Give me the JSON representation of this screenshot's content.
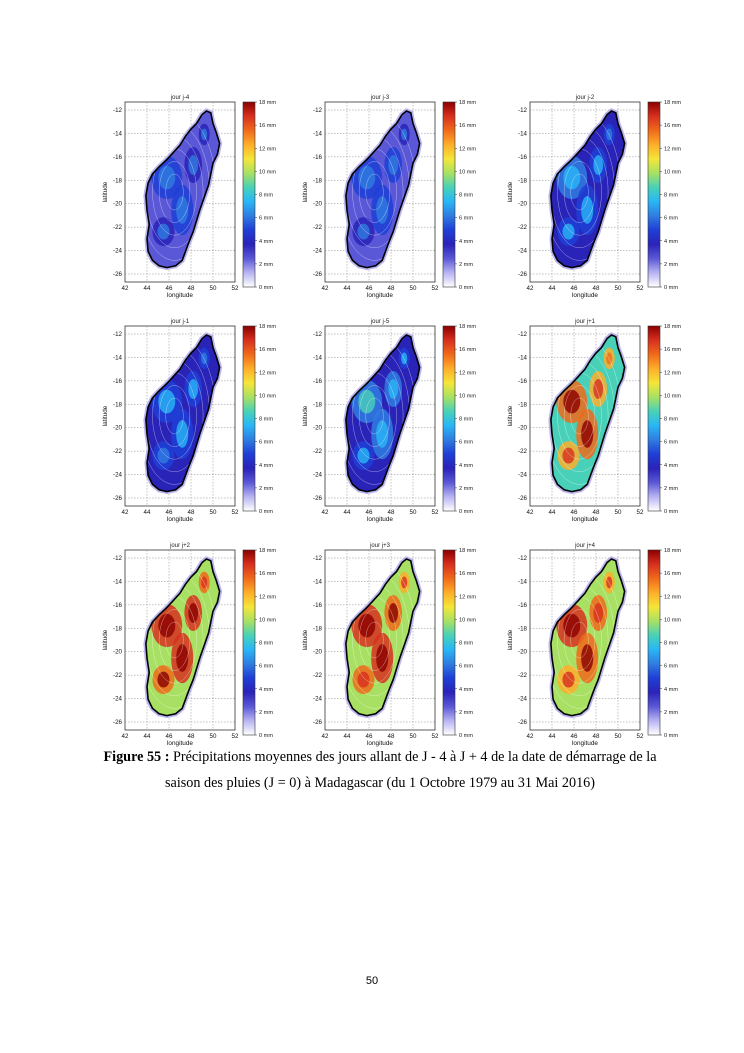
{
  "figure": {
    "colorbar_labels": [
      "18 mm",
      "16 mm",
      "12 mm",
      "10 mm",
      "8 mm",
      "6 mm",
      "4 mm",
      "2 mm",
      "0 mm"
    ],
    "colorbar_colors": [
      "#8b0000",
      "#d7301f",
      "#f06a1a",
      "#fdae2a",
      "#f5e63a",
      "#a8e063",
      "#48d1b8",
      "#29b6f6",
      "#2f7de1",
      "#1f3fd6",
      "#2a23b8",
      "#5b58d8",
      "#b7b4f2",
      "#ffffff"
    ],
    "xticks": [
      "42",
      "44",
      "46",
      "48",
      "50",
      "52"
    ],
    "yticks": [
      "-12",
      "-14",
      "-16",
      "-18",
      "-20",
      "-22",
      "-24",
      "-26"
    ],
    "xlabel": "longitude",
    "ylabel": "latitude",
    "panels": [
      {
        "title": "jour j-4",
        "level": 0.15
      },
      {
        "title": "jour j-3",
        "level": 0.17
      },
      {
        "title": "jour j-2",
        "level": 0.22
      },
      {
        "title": "jour j-1",
        "level": 0.2
      },
      {
        "title": "jour j-5",
        "level": 0.25
      },
      {
        "title": "jour j+1",
        "level": 0.55
      },
      {
        "title": "jour j+2",
        "level": 0.65
      },
      {
        "title": "jour j+3",
        "level": 0.62
      },
      {
        "title": "jour j+4",
        "level": 0.58
      }
    ]
  },
  "caption": {
    "label": "Figure 55 :",
    "text": " Précipitations moyennes des jours allant de J - 4 à J + 4 de la date de démarrage de la saison des pluies (J = 0) à Madagascar (du 1 Octobre 1979 au 31 Mai 2016)"
  },
  "page_number": "50"
}
